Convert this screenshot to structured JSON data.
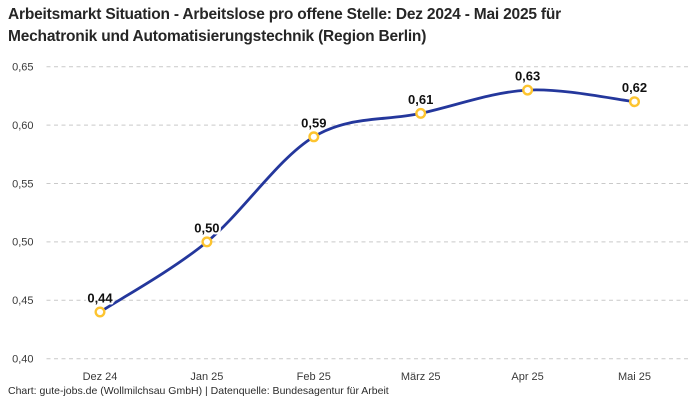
{
  "header": {
    "title": "Arbeitsmarkt Situation - Arbeitslose pro offene Stelle: Dez 2024 - Mai 2025 für Mechatronik und Automatisierungstechnik (Region Berlin)"
  },
  "chart_data": {
    "type": "line",
    "title": "Arbeitsmarkt Situation - Arbeitslose pro offene Stelle: Dez 2024 - Mai 2025 für Mechatronik und Automatisierungstechnik (Region Berlin)",
    "categories": [
      "Dez 24",
      "Jan 25",
      "Feb 25",
      "März 25",
      "Apr 25",
      "Mai 25"
    ],
    "values": [
      0.44,
      0.5,
      0.59,
      0.61,
      0.63,
      0.62
    ],
    "point_labels": [
      "0,44",
      "0,50",
      "0,59",
      "0,61",
      "0,63",
      "0,62"
    ],
    "ylim": [
      0.4,
      0.65
    ],
    "yticks": [
      0.4,
      0.45,
      0.5,
      0.55,
      0.6,
      0.65
    ],
    "ytick_labels": [
      "0,40",
      "0,45",
      "0,50",
      "0,55",
      "0,60",
      "0,65"
    ],
    "xlabel": "",
    "ylabel": "",
    "legend": "none",
    "grid": "horizontal-dashed",
    "smooth": true,
    "colors": {
      "line": "#24379c",
      "marker_ring": "#fdc42f",
      "marker_fill": "#ffffff",
      "grid": "#c9c9c9",
      "axis_text": "#3a3a3a",
      "point_label_text": "#111111"
    }
  },
  "footer": {
    "attribution": "Chart: gute-jobs.de (Wollmilchsau GmbH) | Datenquelle: Bundesagentur für Arbeit"
  }
}
